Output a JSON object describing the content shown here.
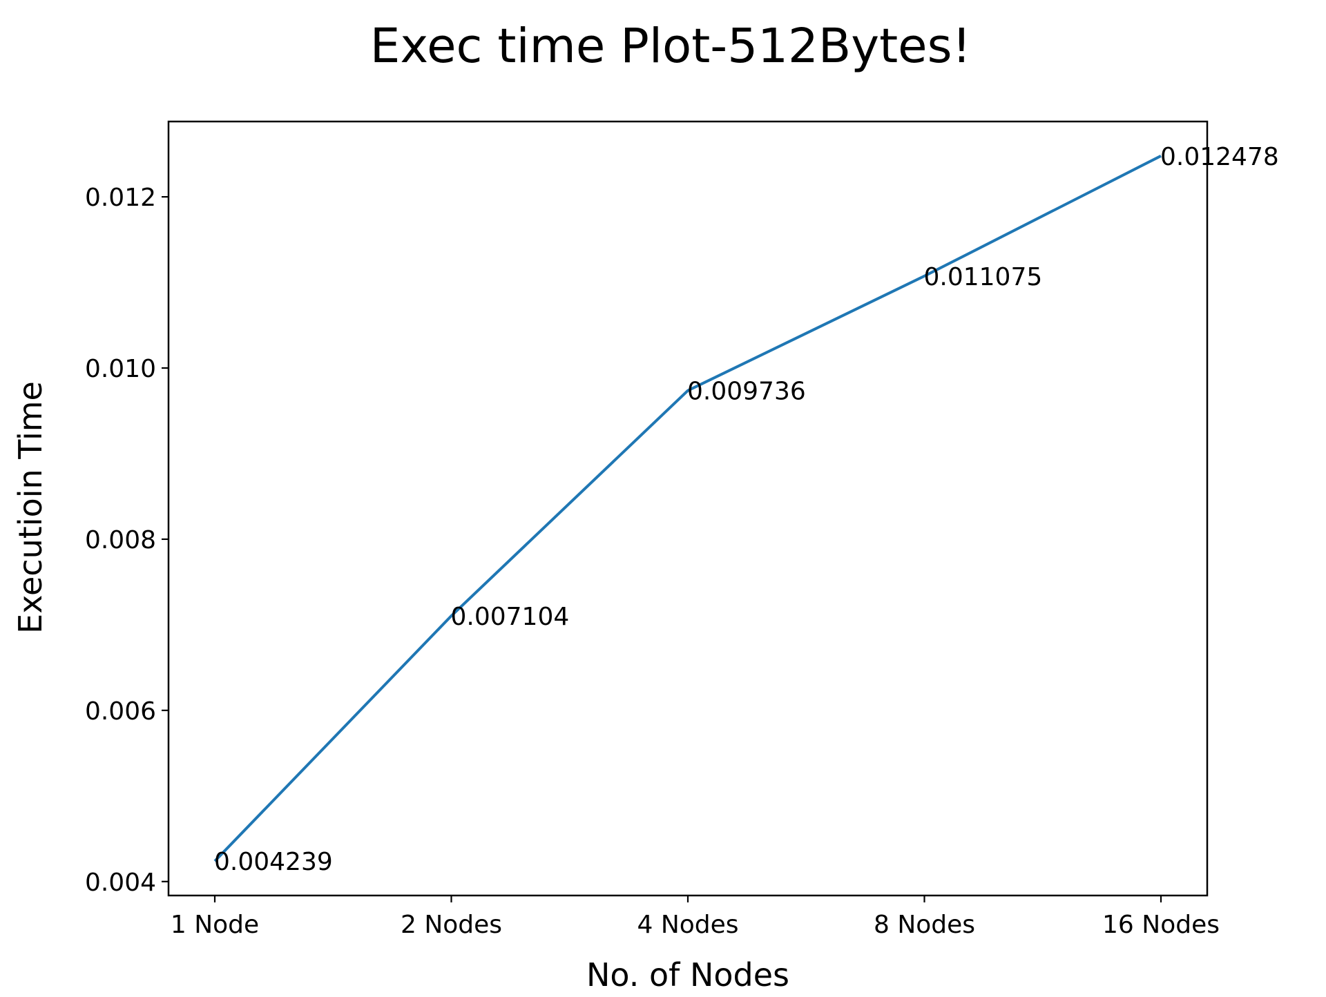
{
  "chart_data": {
    "type": "line",
    "title": "Exec time Plot-512Bytes!",
    "xlabel": "No. of Nodes",
    "ylabel": "Executioin Time",
    "categories": [
      "1 Node",
      "2 Nodes",
      "4 Nodes",
      "8 Nodes",
      "16 Nodes"
    ],
    "series": [
      {
        "values": [
          0.004239,
          0.007104,
          0.009736,
          0.011075,
          0.012478
        ],
        "color": "#1f77b4"
      }
    ],
    "data_labels": [
      "0.004239",
      "0.007104",
      "0.009736",
      "0.011075",
      "0.012478"
    ],
    "yticks": [
      0.004,
      0.006,
      0.008,
      0.01,
      0.012
    ],
    "ytick_labels": [
      "0.004",
      "0.006",
      "0.008",
      "0.010",
      "0.012"
    ],
    "ylim": [
      0.003837,
      0.01288
    ],
    "grid": false,
    "legend": "none"
  }
}
